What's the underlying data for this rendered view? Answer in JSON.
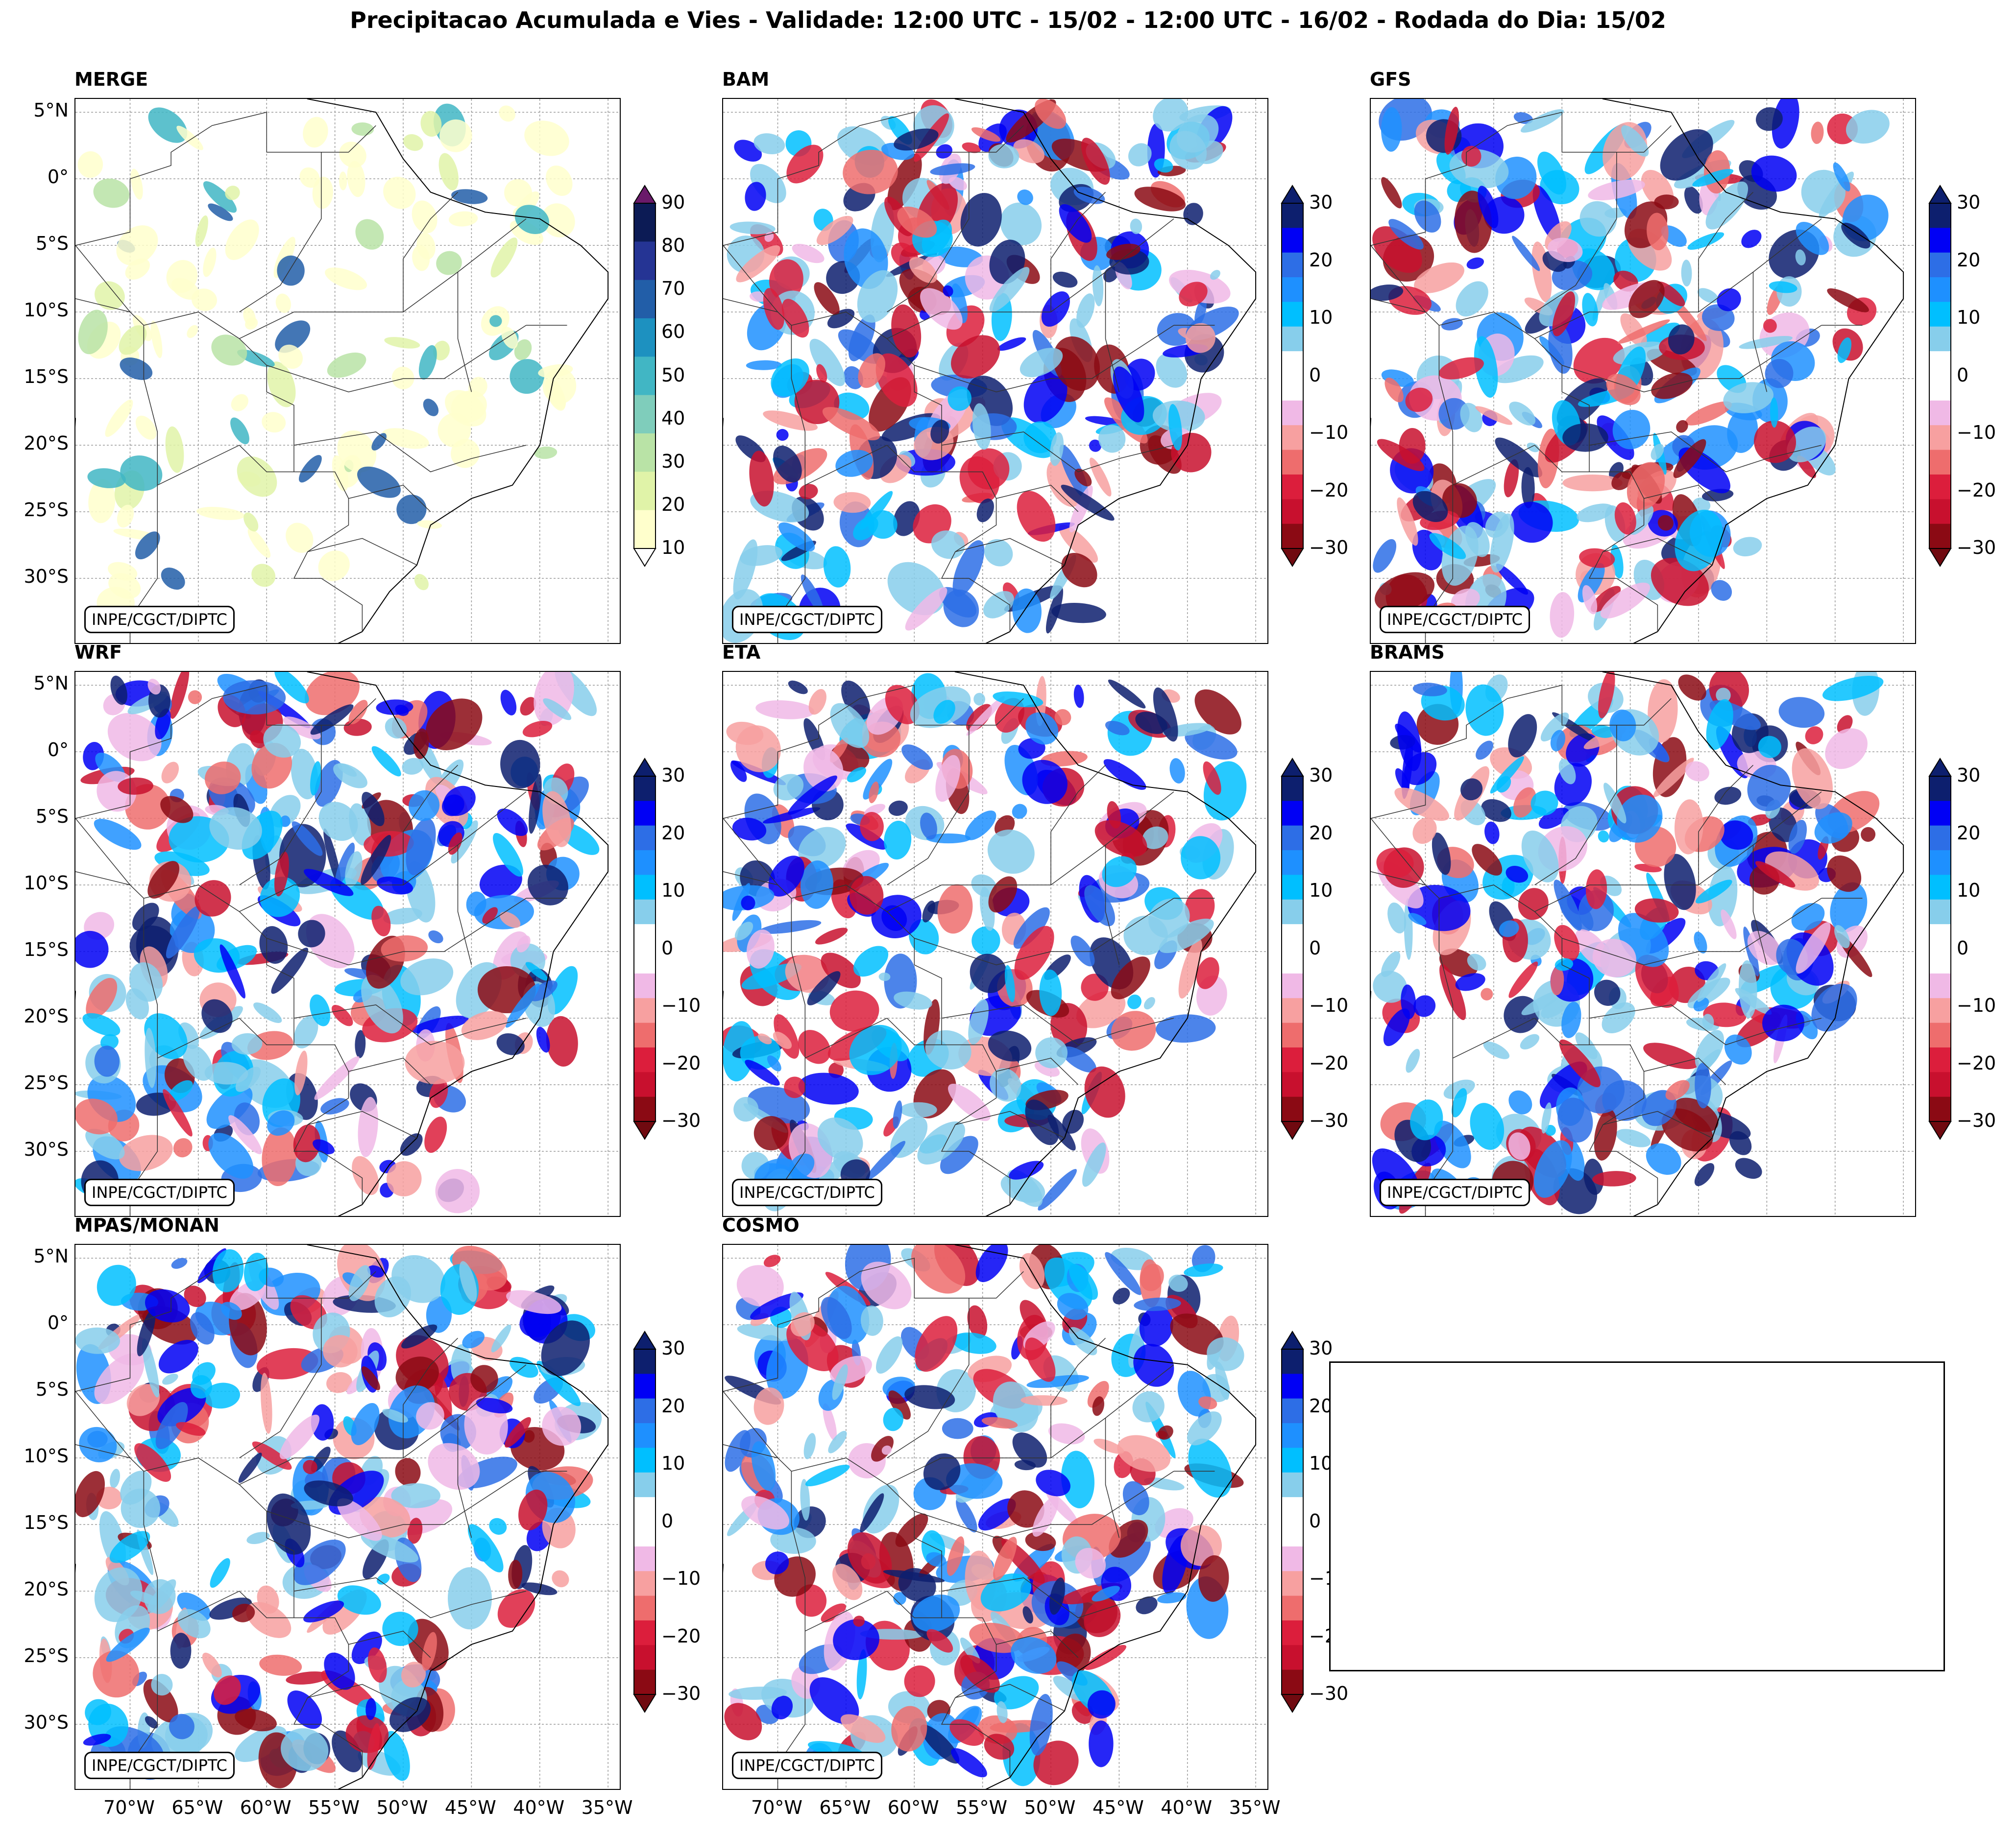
{
  "title": "Precipitacao Acumulada e Vies - Validade: 12:00 UTC - 15/02 - 12:00 UTC - 16/02 - Rodada do Dia: 15/02",
  "credit": "INPE/CGCT/DIPTC",
  "lat_ticks": [
    "5°N",
    "0°",
    "5°S",
    "10°S",
    "15°S",
    "20°S",
    "25°S",
    "30°S"
  ],
  "lon_ticks": [
    "70°W",
    "65°W",
    "60°W",
    "55°W",
    "50°W",
    "45°W",
    "40°W",
    "35°W"
  ],
  "panels": [
    {
      "name": "MERGE",
      "kind": "precip"
    },
    {
      "name": "BAM",
      "kind": "bias"
    },
    {
      "name": "GFS",
      "kind": "bias"
    },
    {
      "name": "WRF",
      "kind": "bias"
    },
    {
      "name": "ETA",
      "kind": "bias"
    },
    {
      "name": "BRAMS",
      "kind": "bias"
    },
    {
      "name": "MPAS/MONAN",
      "kind": "bias"
    },
    {
      "name": "COSMO",
      "kind": "bias"
    }
  ],
  "precip_colorbar": {
    "labels": [
      "90",
      "80",
      "70",
      "60",
      "50",
      "40",
      "30",
      "20",
      "10"
    ],
    "colors": [
      "#ffffcc",
      "#e0f3a8",
      "#b9e3a6",
      "#7fcdbb",
      "#41b6c4",
      "#1d91c0",
      "#225ea8",
      "#253494",
      "#0c1b55"
    ],
    "over_color": "#6a1a6a"
  },
  "bias_colorbar": {
    "labels": [
      "30",
      "20",
      "10",
      "0",
      "−10",
      "−20",
      "−30"
    ],
    "colors": [
      "#0d1f6e",
      "#0000f5",
      "#2d6ee6",
      "#1e90ff",
      "#00bfff",
      "#87ceeb",
      "#ffffff",
      "#ffffff",
      "#f0b9e6",
      "#f7a0a0",
      "#ee6d6d",
      "#dc1e3c",
      "#c8102e",
      "#8b0a14"
    ],
    "over_color": "#0d1f6e",
    "under_color": "#700a10"
  }
}
